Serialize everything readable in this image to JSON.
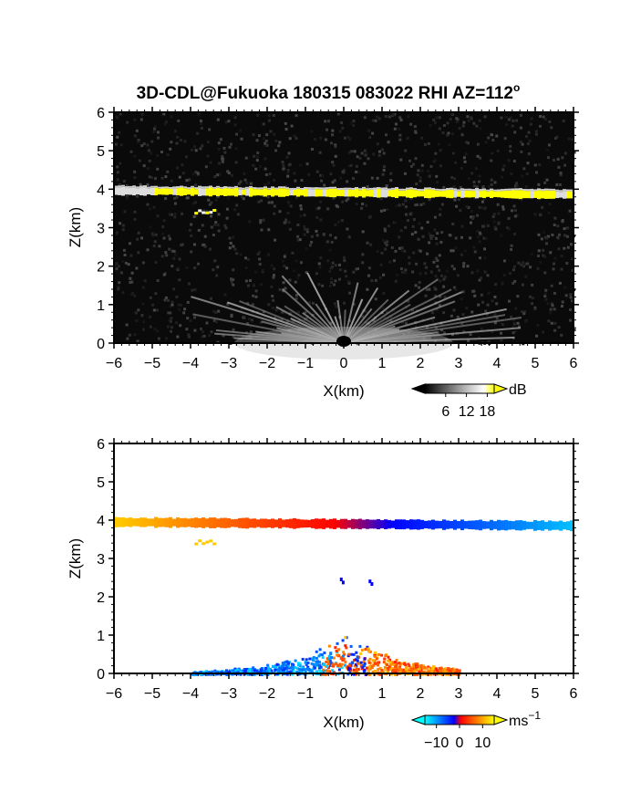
{
  "chart_data": [
    {
      "type": "heatmap",
      "title": "3D-CDL@Fukuoka 180315 083022 RHI AZ=112",
      "title_superscript": "o",
      "xlabel": "X(km)",
      "ylabel": "Z(km)",
      "xlim": [
        -6,
        6
      ],
      "ylim": [
        0,
        6
      ],
      "xticks": [
        "-6",
        "-5",
        "-4",
        "-3",
        "-2",
        "-1",
        "0",
        "1",
        "2",
        "3",
        "4",
        "5",
        "6"
      ],
      "yticks": [
        "0",
        "1",
        "2",
        "3",
        "4",
        "5",
        "6"
      ],
      "colorbar": {
        "unit": "dB",
        "ticks": [
          "6",
          "12",
          "18"
        ],
        "range": [
          0,
          20
        ],
        "colors": [
          "#000000",
          "#ffffff",
          "#ffff00"
        ]
      },
      "features": {
        "layer": {
          "z_km": 3.9,
          "x_range": [
            -6,
            6
          ],
          "peak_db": 20
        },
        "fragment": {
          "x_range": [
            -3.9,
            -3.4
          ],
          "z_range": [
            3.35,
            3.5
          ]
        },
        "near_field_fan": {
          "x_center": 0,
          "z_max": 1.3,
          "x_halfwidth": 5.5
        }
      }
    },
    {
      "type": "heatmap",
      "xlabel": "X(km)",
      "ylabel": "Z(km)",
      "xlim": [
        -6,
        6
      ],
      "ylim": [
        0,
        6
      ],
      "xticks": [
        "-6",
        "-5",
        "-4",
        "-3",
        "-2",
        "-1",
        "0",
        "1",
        "2",
        "3",
        "4",
        "5",
        "6"
      ],
      "yticks": [
        "0",
        "1",
        "2",
        "3",
        "4",
        "5",
        "6"
      ],
      "colorbar": {
        "unit": "ms",
        "unit_superscript": "−1",
        "ticks": [
          "−10",
          "0",
          "10"
        ],
        "range": [
          -15,
          15
        ],
        "colors": [
          "#00ffff",
          "#0000ff",
          "#ff0000",
          "#ffff00"
        ]
      },
      "features": {
        "layer": {
          "z_km": 3.9,
          "x_range": [
            -6,
            6
          ],
          "velocity_left": 12,
          "velocity_right": -12
        },
        "fragment": {
          "x_range": [
            -3.9,
            -3.4
          ],
          "z_range": [
            3.35,
            3.5
          ],
          "velocity": 12
        },
        "near_field": {
          "x_range": [
            -4,
            3
          ],
          "z_max": 1.2
        }
      }
    }
  ]
}
